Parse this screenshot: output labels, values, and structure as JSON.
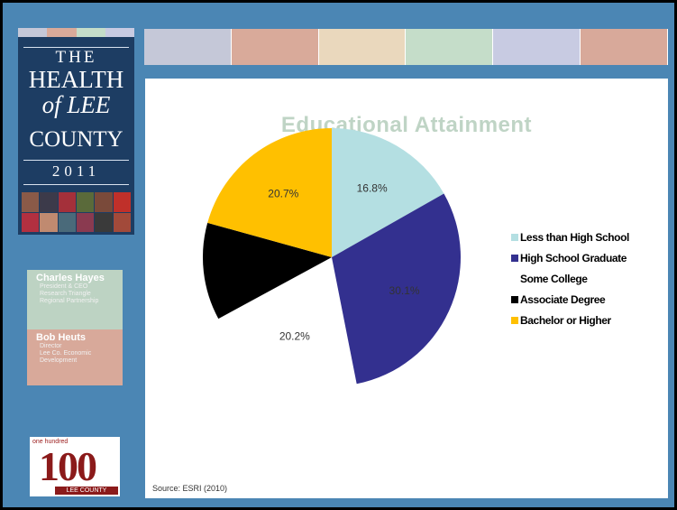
{
  "cover": {
    "title_line1": "THE",
    "title_line2": "HEALTH",
    "title_line3": "of LEE",
    "title_line4": "COUNTY",
    "year": "2011",
    "colors": {
      "background": "#1d3d63",
      "text": "#ffffff"
    }
  },
  "tabs": {
    "colors": [
      "#c5c8d8",
      "#d9aa9a",
      "#ead8bd",
      "#c5ddc9",
      "#c8cbe2",
      "#d8a99a"
    ]
  },
  "people": [
    {
      "name": "Charles Hayes",
      "role_lines": [
        "President & CEO",
        "Research Triangle",
        "Regional Partnership"
      ],
      "color": "#bdd3c3"
    },
    {
      "name": "Bob Heuts",
      "role_lines": [
        "Director",
        "Lee Co. Economic",
        "Development"
      ],
      "color": "#d8a99a"
    }
  ],
  "logo": {
    "small_text": "one hundred",
    "number": "100",
    "subtext": "LEE COUNTY"
  },
  "source": "Source: ESRI (2010)",
  "chart_data": {
    "type": "pie",
    "title": "Educational Attainment",
    "slices": [
      {
        "label": "Less than High School",
        "value": 16.8,
        "data_label": "16.8%",
        "color": "#b4dfe2"
      },
      {
        "label": "High School Graduate",
        "value": 30.1,
        "data_label": "30.1%",
        "color": "#33308f"
      },
      {
        "label": "Some College",
        "value": 20.2,
        "data_label": "20.2%",
        "color": "#ffffff"
      },
      {
        "label": "Associate Degree",
        "value": 12.2,
        "data_label": "",
        "color": "#000000"
      },
      {
        "label": "Bachelor or Higher",
        "value": 20.7,
        "data_label": "20.7%",
        "color": "#ffc000"
      }
    ],
    "legend": [
      {
        "label": "Less than High School",
        "color": "#b4dfe2"
      },
      {
        "label": "High School Graduate",
        "color": "#33308f"
      },
      {
        "label": "Some College",
        "color": "#ffffff"
      },
      {
        "label": "Associate Degree",
        "color": "#000000"
      },
      {
        "label": "Bachelor or Higher",
        "color": "#ffc000"
      }
    ],
    "legend_position": "right"
  }
}
